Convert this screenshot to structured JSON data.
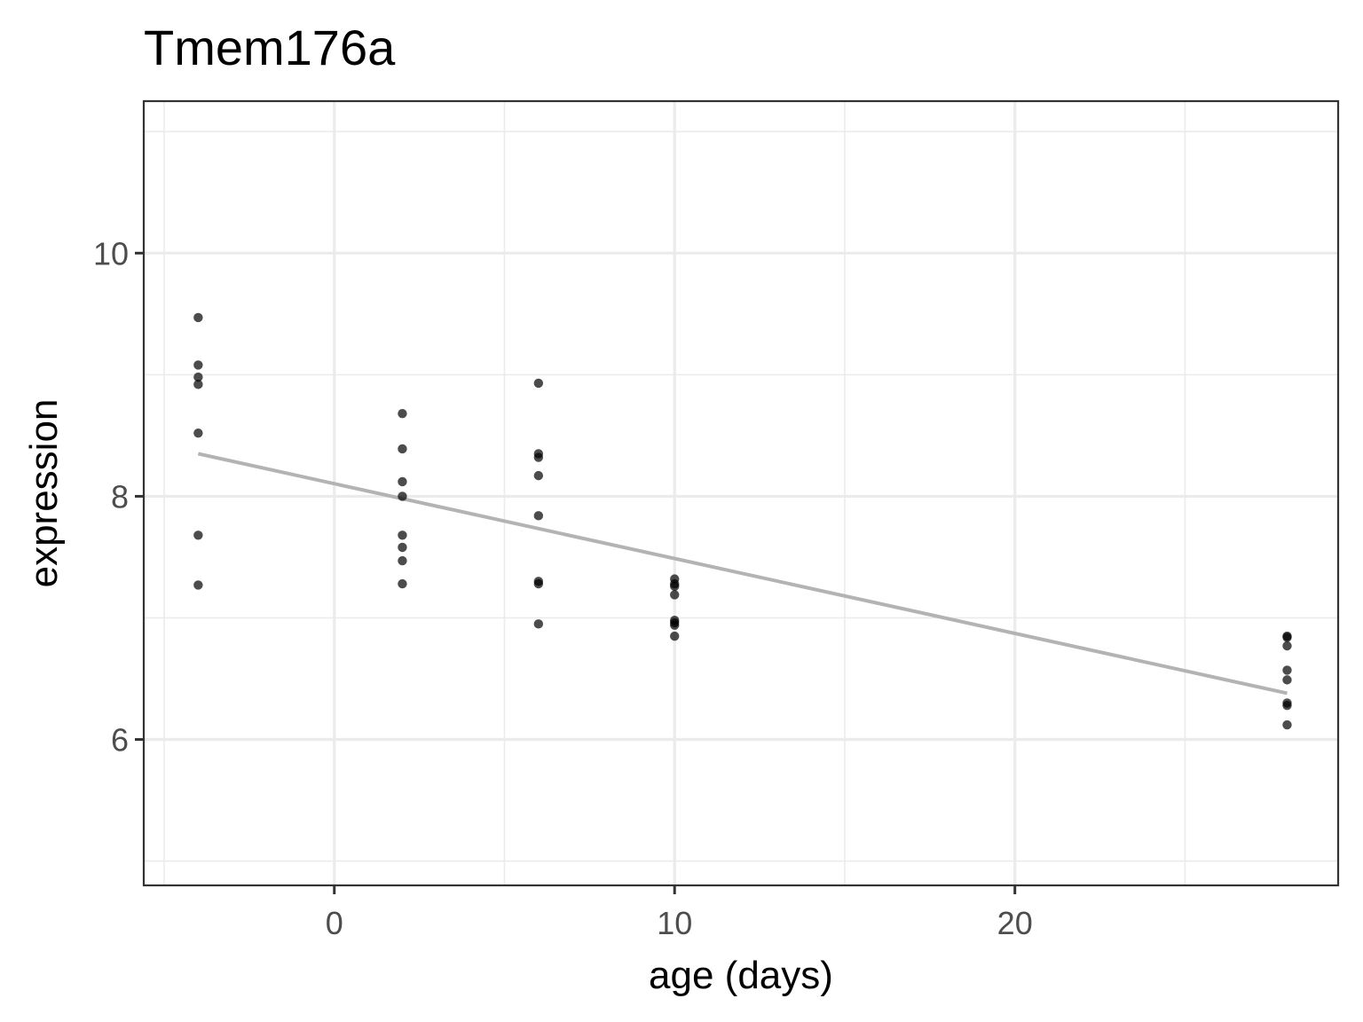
{
  "chart_data": {
    "type": "scatter",
    "title": "Tmem176a",
    "xlabel": "age (days)",
    "ylabel": "expression",
    "xlim": [
      -5.6,
      29.5
    ],
    "ylim": [
      4.8,
      11.25
    ],
    "x_major_ticks": [
      0,
      10,
      20
    ],
    "x_minor_ticks": [
      -5,
      5,
      15,
      25
    ],
    "y_major_ticks": [
      6,
      8,
      10
    ],
    "y_minor_ticks": [
      5,
      7,
      9,
      11
    ],
    "x_tick_labels": [
      "0",
      "10",
      "20"
    ],
    "y_tick_labels": [
      "6",
      "8",
      "10"
    ],
    "grid": true,
    "points": [
      {
        "x": -4,
        "y": 9.47
      },
      {
        "x": -4,
        "y": 9.08
      },
      {
        "x": -4,
        "y": 8.98
      },
      {
        "x": -4,
        "y": 8.92
      },
      {
        "x": -4,
        "y": 8.52
      },
      {
        "x": -4,
        "y": 7.68
      },
      {
        "x": -4,
        "y": 7.27
      },
      {
        "x": 2,
        "y": 8.68
      },
      {
        "x": 2,
        "y": 8.39
      },
      {
        "x": 2,
        "y": 8.12
      },
      {
        "x": 2,
        "y": 8.0
      },
      {
        "x": 2,
        "y": 7.68
      },
      {
        "x": 2,
        "y": 7.58
      },
      {
        "x": 2,
        "y": 7.47
      },
      {
        "x": 2,
        "y": 7.28
      },
      {
        "x": 6,
        "y": 8.93
      },
      {
        "x": 6,
        "y": 8.35
      },
      {
        "x": 6,
        "y": 8.32
      },
      {
        "x": 6,
        "y": 8.17
      },
      {
        "x": 6,
        "y": 7.84
      },
      {
        "x": 6,
        "y": 7.3
      },
      {
        "x": 6,
        "y": 7.28
      },
      {
        "x": 6,
        "y": 6.95
      },
      {
        "x": 10,
        "y": 7.32
      },
      {
        "x": 10,
        "y": 7.28
      },
      {
        "x": 10,
        "y": 7.26
      },
      {
        "x": 10,
        "y": 7.19
      },
      {
        "x": 10,
        "y": 6.98
      },
      {
        "x": 10,
        "y": 6.96
      },
      {
        "x": 10,
        "y": 6.94
      },
      {
        "x": 10,
        "y": 6.85
      },
      {
        "x": 28,
        "y": 6.85
      },
      {
        "x": 28,
        "y": 6.84
      },
      {
        "x": 28,
        "y": 6.77
      },
      {
        "x": 28,
        "y": 6.57
      },
      {
        "x": 28,
        "y": 6.49
      },
      {
        "x": 28,
        "y": 6.3
      },
      {
        "x": 28,
        "y": 6.28
      },
      {
        "x": 28,
        "y": 6.12
      }
    ],
    "fit_line": {
      "x": [
        -4,
        28
      ],
      "y": [
        8.35,
        6.38
      ]
    },
    "colors": {
      "points": "#000000",
      "fit_line": "#b3b3b3",
      "grid": "#ebebeb",
      "border": "#333333"
    }
  }
}
